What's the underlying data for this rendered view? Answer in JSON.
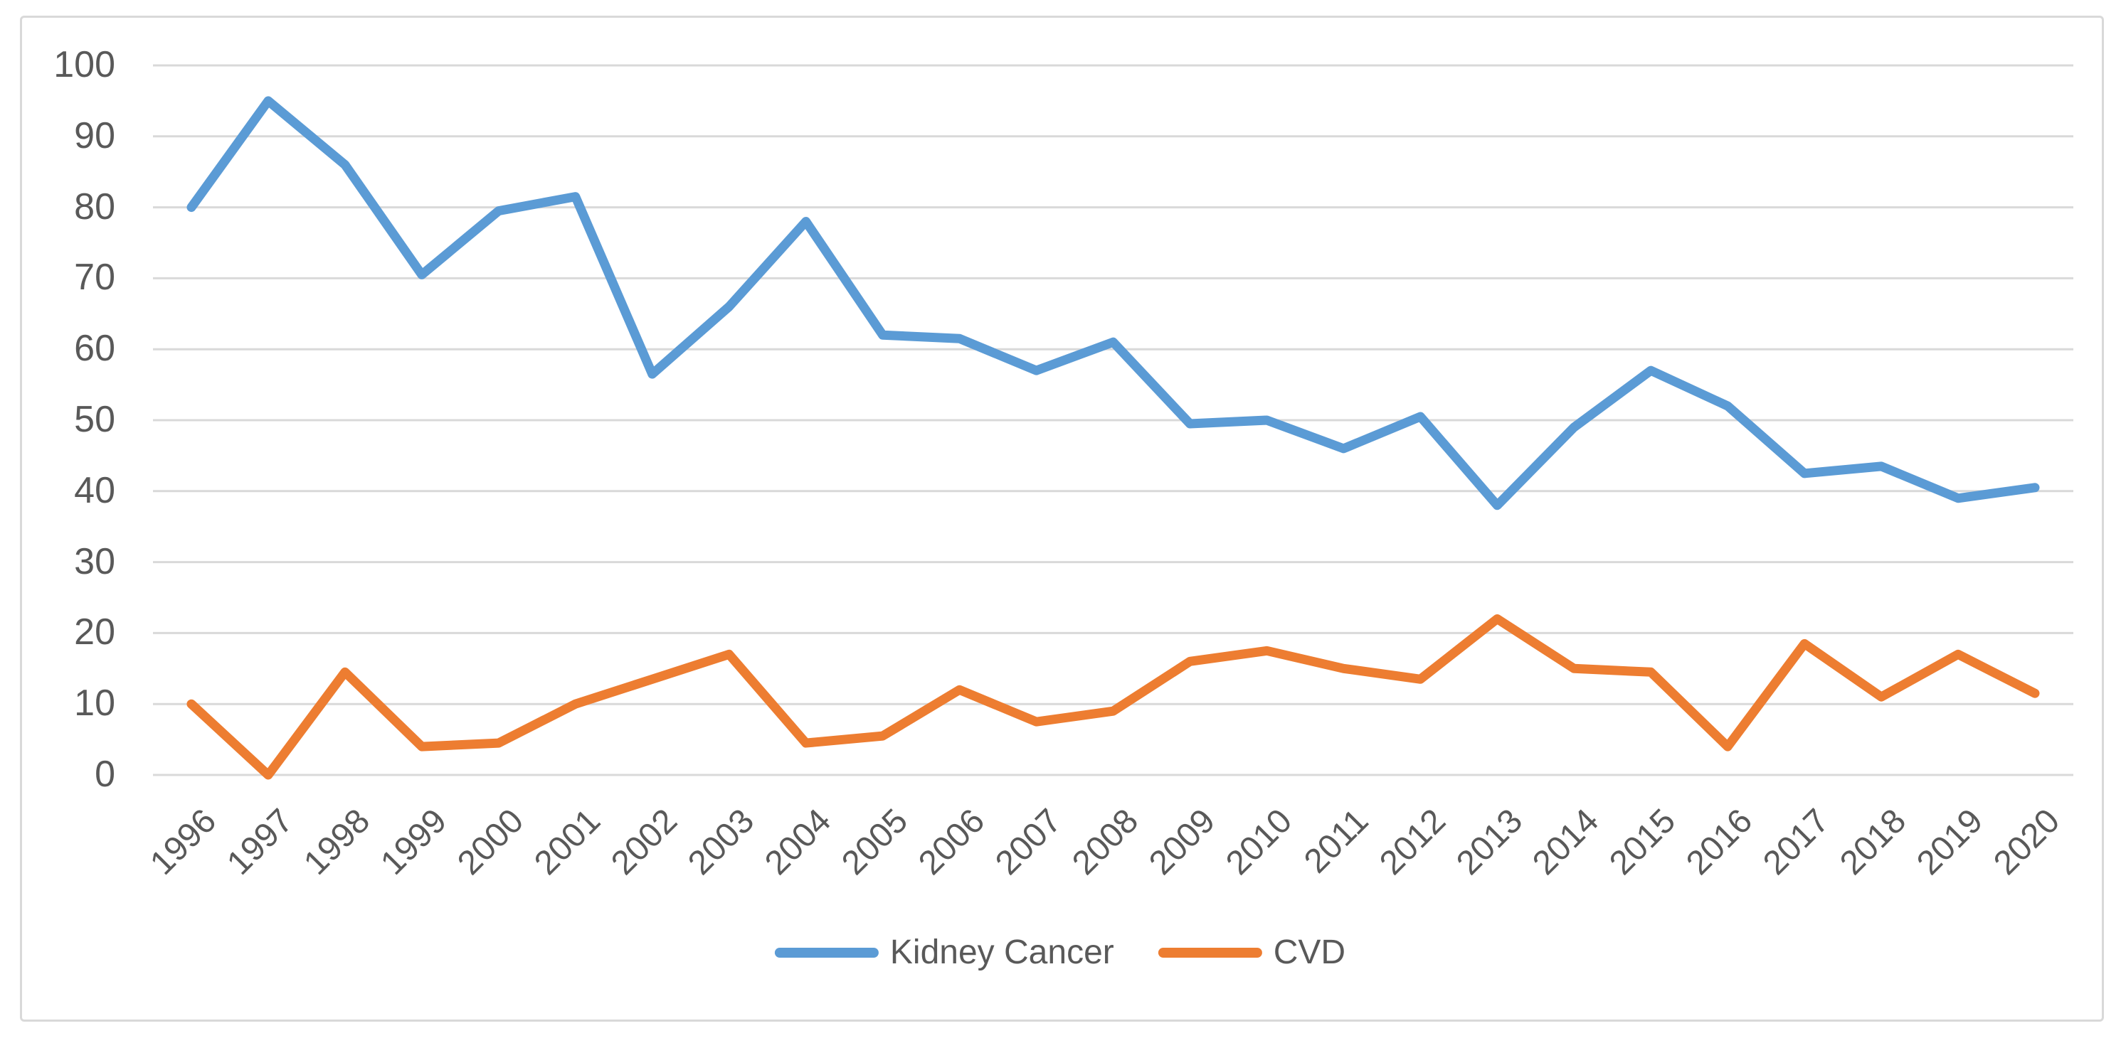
{
  "chart_data": {
    "type": "line",
    "title": "",
    "xlabel": "",
    "ylabel": "",
    "x_categories": [
      "1996",
      "1997",
      "1998",
      "1999",
      "2000",
      "2001",
      "2002",
      "2003",
      "2004",
      "2005",
      "2006",
      "2007",
      "2008",
      "2009",
      "2010",
      "2011",
      "2012",
      "2013",
      "2014",
      "2015",
      "2016",
      "2017",
      "2018",
      "2019",
      "2020"
    ],
    "series": [
      {
        "name": "Kidney Cancer",
        "color": "#5B9BD5",
        "values": [
          80,
          95,
          86,
          70.5,
          79.5,
          81.5,
          56.5,
          66,
          78,
          62,
          61.5,
          57,
          61,
          49.5,
          50,
          46,
          50.5,
          38,
          49,
          57,
          52,
          42.5,
          43.5,
          39,
          40.5
        ]
      },
      {
        "name": "CVD",
        "color": "#ED7D31",
        "values": [
          10,
          0,
          14.5,
          4,
          4.5,
          10,
          13.5,
          17,
          4.5,
          5.5,
          12,
          7.5,
          9,
          16,
          17.5,
          15,
          13.5,
          22,
          15,
          14.5,
          4,
          18.5,
          11,
          17,
          11.5
        ]
      }
    ],
    "ylim": [
      0,
      100
    ],
    "ytick_step": 10,
    "yticks": [
      0,
      10,
      20,
      30,
      40,
      50,
      60,
      70,
      80,
      90,
      100
    ],
    "grid": true,
    "legend_position": "bottom"
  },
  "legend": {
    "items": [
      {
        "label": "Kidney Cancer",
        "color": "#5B9BD5"
      },
      {
        "label": "CVD",
        "color": "#ED7D31"
      }
    ]
  },
  "styles": {
    "grid_color": "#D9D9D9",
    "frame_border_color": "#D9D9D9",
    "text_color": "#595959",
    "background": "#FFFFFF",
    "line_width": 13
  }
}
